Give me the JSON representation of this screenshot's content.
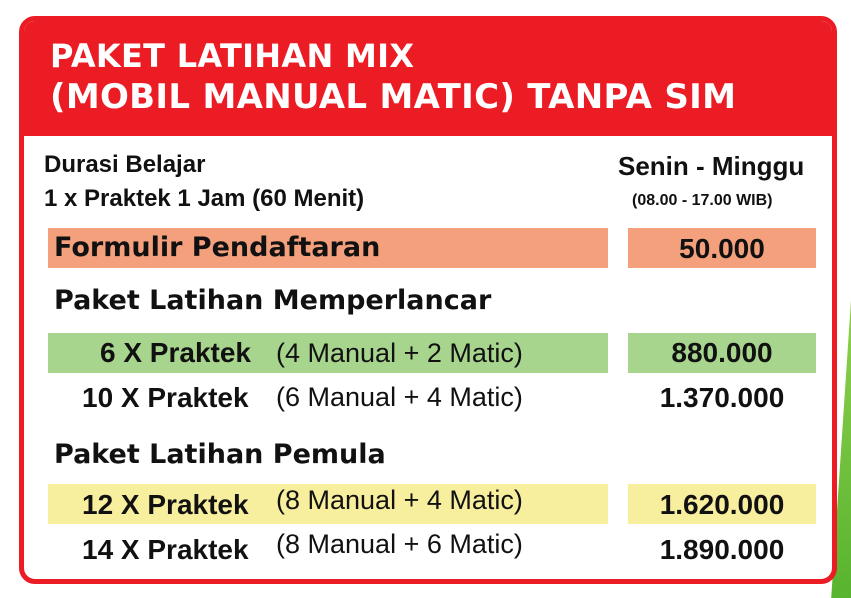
{
  "header": {
    "title_line1": "PAKET LATIHAN  MIX",
    "title_line2": "(MOBIL MANUAL MATIC) TANPA SIM"
  },
  "info": {
    "duration_label": "Durasi Belajar",
    "duration_detail": "1 x Praktek 1 Jam (60 Menit)",
    "days": "Senin - Minggu",
    "hours": "(08.00 - 17.00 WIB)"
  },
  "registration": {
    "label": "Formulir Pendaftaran",
    "price": "50.000"
  },
  "sections": [
    {
      "title": "Paket Latihan Memperlancar",
      "rows": [
        {
          "package": "6 X Praktek",
          "detail": "(4 Manual + 2 Matic)",
          "price": "880.000"
        },
        {
          "package": "10 X Praktek",
          "detail": "(6 Manual + 4 Matic)",
          "price": "1.370.000"
        }
      ]
    },
    {
      "title": "Paket Latihan Pemula",
      "rows": [
        {
          "package": "12 X Praktek",
          "detail": "(8 Manual + 4 Matic)",
          "price": "1.620.000"
        },
        {
          "package": "14 X Praktek",
          "detail": "(8 Manual + 6 Matic)",
          "price": "1.890.000"
        }
      ]
    }
  ],
  "colors": {
    "header_red": "#ec1c24",
    "registration_bar": "#f4a07c",
    "memperlancar_bar": "#a8d58e",
    "pemula_bar": "#f8ef9e"
  }
}
